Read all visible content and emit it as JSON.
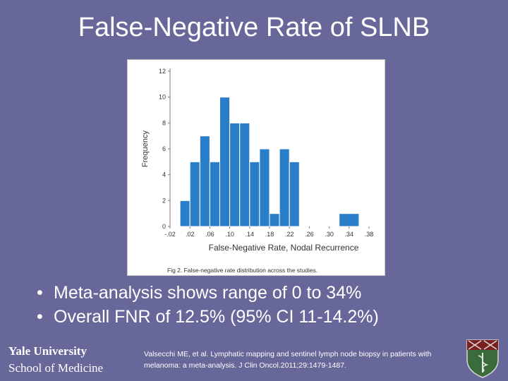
{
  "slide": {
    "title": "False-Negative Rate of SLNB",
    "bullets": [
      "Meta-analysis shows range of 0 to 34%",
      "Overall FNR of 12.5% (95% CI 11-14.2%)"
    ],
    "institution": {
      "line1": "Yale University",
      "line2": "School of Medicine"
    },
    "citation": "Valsecchi ME, et al. Lymphatic mapping and sentinel lymph node biopsy in patients with melanoma: a meta-analysis. J Clin Oncol.2011;29:1479-1487.",
    "colors": {
      "background": "#67679a",
      "text": "#ffffff",
      "bar": "#2a7dc8",
      "shield_bg": "#3a6b3a",
      "shield_top": "#7a1f1f"
    },
    "icons": {
      "bullet": "bullet-dot",
      "logo": "yale-shield-icon"
    }
  },
  "chart_data": {
    "type": "bar",
    "ylabel": "Frequency",
    "xlabel": "False-Negative Rate, Nodal Recurrence",
    "caption": "Fig 2. False-negative rate distribution across the studies.",
    "ylim": [
      0,
      12
    ],
    "yticks": [
      0,
      2,
      4,
      6,
      8,
      10,
      12
    ],
    "xlim": [
      -0.02,
      0.38
    ],
    "xticks": [
      -0.02,
      0.02,
      0.06,
      0.1,
      0.14,
      0.18,
      0.22,
      0.26,
      0.3,
      0.34,
      0.38
    ],
    "xtick_labels": [
      "-.02",
      ".02",
      ".06",
      ".10",
      ".14",
      ".18",
      ".22",
      ".26",
      ".30",
      ".34",
      ".38"
    ],
    "bin_width": 0.02,
    "bins": [
      {
        "start": 0.0,
        "end": 0.02,
        "value": 2
      },
      {
        "start": 0.02,
        "end": 0.04,
        "value": 5
      },
      {
        "start": 0.04,
        "end": 0.06,
        "value": 7
      },
      {
        "start": 0.06,
        "end": 0.08,
        "value": 5
      },
      {
        "start": 0.08,
        "end": 0.1,
        "value": 10
      },
      {
        "start": 0.1,
        "end": 0.12,
        "value": 8
      },
      {
        "start": 0.12,
        "end": 0.14,
        "value": 8
      },
      {
        "start": 0.14,
        "end": 0.16,
        "value": 5
      },
      {
        "start": 0.16,
        "end": 0.18,
        "value": 6
      },
      {
        "start": 0.18,
        "end": 0.2,
        "value": 1
      },
      {
        "start": 0.2,
        "end": 0.22,
        "value": 6
      },
      {
        "start": 0.22,
        "end": 0.24,
        "value": 5
      },
      {
        "start": 0.32,
        "end": 0.36,
        "value": 1
      }
    ],
    "grid": false
  }
}
